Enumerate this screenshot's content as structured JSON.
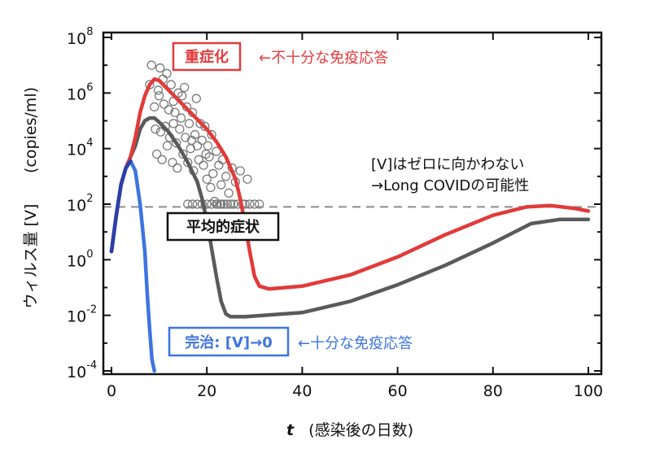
{
  "chart_data": {
    "type": "line",
    "x_axis": {
      "label_var": "t",
      "label_text": "(感染後の日数)",
      "range": [
        0,
        100
      ],
      "ticks": [
        0,
        20,
        40,
        60,
        80,
        100
      ]
    },
    "y_axis": {
      "label_main": "ウィルス量 [V]",
      "label_unit": "(copies/ml)",
      "scale": "log10",
      "range_exp": [
        -4,
        8
      ],
      "ticks": [
        {
          "base": "10",
          "exp": "8",
          "value": 8
        },
        {
          "base": "10",
          "exp": "6",
          "value": 6
        },
        {
          "base": "10",
          "exp": "4",
          "value": 4
        },
        {
          "base": "10",
          "exp": "2",
          "value": 2
        },
        {
          "base": "10",
          "exp": "0",
          "value": 0
        },
        {
          "base": "10",
          "exp": "-2",
          "value": -2
        },
        {
          "base": "10",
          "exp": "-4",
          "value": -4
        }
      ]
    },
    "threshold_log10": 1.9,
    "series": [
      {
        "name": "重症化",
        "color": "#e23a3a",
        "points_log10": [
          [
            0,
            0.3
          ],
          [
            1,
            1.6
          ],
          [
            2,
            2.7
          ],
          [
            3,
            3.3
          ],
          [
            4,
            3.7
          ],
          [
            5,
            4.4
          ],
          [
            6,
            5.3
          ],
          [
            7,
            5.9
          ],
          [
            8,
            6.3
          ],
          [
            9,
            6.5
          ],
          [
            10,
            6.45
          ],
          [
            12,
            6.1
          ],
          [
            14,
            5.75
          ],
          [
            16,
            5.4
          ],
          [
            18,
            5.05
          ],
          [
            20,
            4.7
          ],
          [
            22,
            4.25
          ],
          [
            24,
            3.7
          ],
          [
            26,
            2.9
          ],
          [
            27,
            2.2
          ],
          [
            28,
            1.3
          ],
          [
            29,
            0.3
          ],
          [
            30,
            -0.6
          ],
          [
            31,
            -0.95
          ],
          [
            33,
            -1.05
          ],
          [
            40,
            -0.95
          ],
          [
            50,
            -0.55
          ],
          [
            60,
            0.1
          ],
          [
            70,
            0.9
          ],
          [
            80,
            1.6
          ],
          [
            87,
            1.9
          ],
          [
            92,
            1.95
          ],
          [
            97,
            1.85
          ],
          [
            100,
            1.75
          ]
        ]
      },
      {
        "name": "平均的症状",
        "color": "#5a5a5a",
        "points_log10": [
          [
            0,
            0.3
          ],
          [
            1,
            1.6
          ],
          [
            2,
            2.7
          ],
          [
            3,
            3.3
          ],
          [
            4,
            3.7
          ],
          [
            5,
            4.1
          ],
          [
            6,
            4.7
          ],
          [
            7,
            5.0
          ],
          [
            8,
            5.1
          ],
          [
            9,
            5.1
          ],
          [
            10,
            4.95
          ],
          [
            12,
            4.6
          ],
          [
            14,
            4.1
          ],
          [
            16,
            3.5
          ],
          [
            18,
            2.8
          ],
          [
            19,
            2.2
          ],
          [
            20,
            1.4
          ],
          [
            21,
            0.4
          ],
          [
            22,
            -0.6
          ],
          [
            23,
            -1.5
          ],
          [
            24,
            -1.95
          ],
          [
            25,
            -2.05
          ],
          [
            28,
            -2.05
          ],
          [
            40,
            -1.9
          ],
          [
            50,
            -1.5
          ],
          [
            60,
            -0.9
          ],
          [
            70,
            -0.2
          ],
          [
            80,
            0.6
          ],
          [
            88,
            1.3
          ],
          [
            94,
            1.45
          ],
          [
            100,
            1.45
          ]
        ]
      },
      {
        "name": "完治",
        "color": "#3d74e0",
        "points_log10": [
          [
            0,
            0.3
          ],
          [
            1,
            1.6
          ],
          [
            2,
            2.7
          ],
          [
            3,
            3.3
          ],
          [
            4,
            3.55
          ],
          [
            5,
            3.2
          ],
          [
            6,
            2.0
          ],
          [
            7,
            0.3
          ],
          [
            7.5,
            -1.2
          ],
          [
            8,
            -2.5
          ],
          [
            8.5,
            -3.6
          ],
          [
            9,
            -4.0
          ]
        ]
      }
    ],
    "scatter_log10": [
      [
        8,
        6.3
      ],
      [
        8.4,
        7.0
      ],
      [
        9,
        5.5
      ],
      [
        9.2,
        4.7
      ],
      [
        9.5,
        3.8
      ],
      [
        9.8,
        6.1
      ],
      [
        10,
        5.9
      ],
      [
        10.3,
        4.6
      ],
      [
        10.6,
        3.6
      ],
      [
        10.8,
        6.5
      ],
      [
        11,
        5.6
      ],
      [
        11.3,
        4.8
      ],
      [
        11.7,
        4.1
      ],
      [
        12,
        5.4
      ],
      [
        12.2,
        4.4
      ],
      [
        12.5,
        6.3
      ],
      [
        12.8,
        3.5
      ],
      [
        13,
        4.9
      ],
      [
        13.3,
        5.3
      ],
      [
        13.6,
        4.2
      ],
      [
        13.8,
        3.3
      ],
      [
        14,
        6.0
      ],
      [
        14.3,
        4.7
      ],
      [
        14.6,
        5.1
      ],
      [
        15,
        3.8
      ],
      [
        15.3,
        6.2
      ],
      [
        15.5,
        4.4
      ],
      [
        15.8,
        5.5
      ],
      [
        16,
        3.5
      ],
      [
        16.3,
        4.9
      ],
      [
        16.6,
        4.0
      ],
      [
        17,
        5.3
      ],
      [
        17.2,
        3.2
      ],
      [
        17.5,
        4.5
      ],
      [
        17.8,
        5.8
      ],
      [
        18,
        4.1
      ],
      [
        18.3,
        3.6
      ],
      [
        18.6,
        4.9
      ],
      [
        19,
        4.3
      ],
      [
        19.3,
        3.4
      ],
      [
        19.6,
        4.8
      ],
      [
        20,
        2.9
      ],
      [
        20.2,
        4.1
      ],
      [
        20.5,
        3.7
      ],
      [
        20.8,
        2.6
      ],
      [
        21,
        4.5
      ],
      [
        21.3,
        3.1
      ],
      [
        21.6,
        2.1
      ],
      [
        22,
        3.9
      ],
      [
        22.2,
        2.0
      ],
      [
        22.5,
        3.4
      ],
      [
        22.8,
        2.0
      ],
      [
        23,
        2.7
      ],
      [
        23.3,
        3.6
      ],
      [
        23.6,
        2.0
      ],
      [
        24,
        3.0
      ],
      [
        24.3,
        2.0
      ],
      [
        24.6,
        2.4
      ],
      [
        25,
        2.0
      ],
      [
        25.3,
        3.3
      ],
      [
        25.6,
        2.0
      ],
      [
        26,
        2.8
      ],
      [
        26.5,
        2.0
      ],
      [
        27,
        3.2
      ],
      [
        27.5,
        2.0
      ],
      [
        28,
        2.0
      ],
      [
        28.5,
        2.9
      ],
      [
        29,
        2.0
      ],
      [
        30,
        2.0
      ],
      [
        31,
        2.0
      ],
      [
        16,
        2.0
      ],
      [
        17,
        2.0
      ],
      [
        18,
        2.0
      ],
      [
        19,
        2.0
      ],
      [
        20,
        2.0
      ],
      [
        21,
        2.0
      ],
      [
        22,
        2.0
      ],
      [
        23,
        2.0
      ],
      [
        13,
        5.7
      ],
      [
        14.8,
        5.9
      ],
      [
        16.8,
        4.3
      ],
      [
        19.8,
        3.8
      ],
      [
        11.6,
        6.7
      ],
      [
        10.2,
        6.9
      ]
    ],
    "annotations": {
      "severe_label": "重症化",
      "severe_note": "←不十分な免疫応答",
      "average_label": "平均的症状",
      "cure_label": "完治: [V]→0",
      "cure_note": "←十分な免疫応答",
      "persist_line1": "[V]はゼロに向かわない",
      "persist_line2": "→Long COVIDの可能性"
    }
  }
}
